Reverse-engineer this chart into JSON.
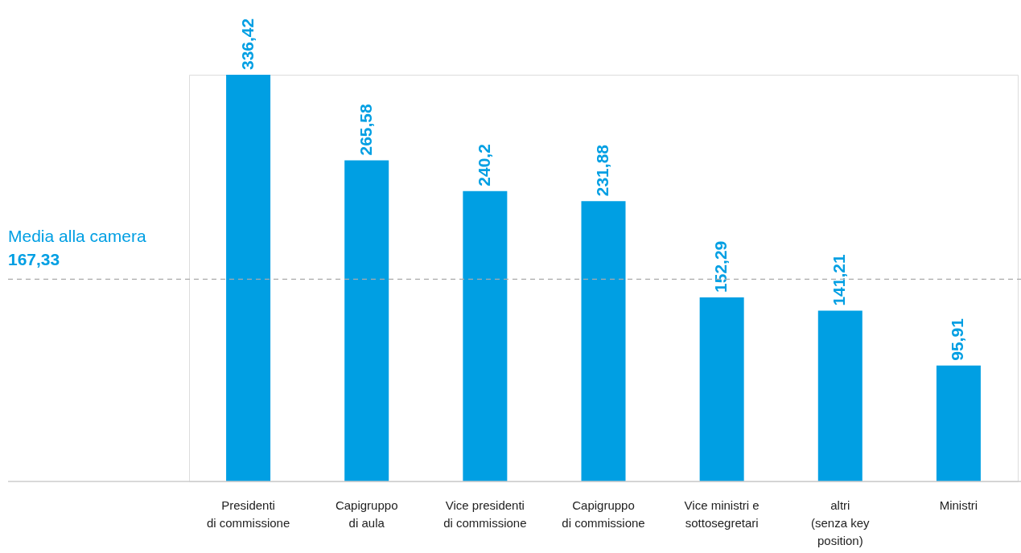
{
  "chart_data": {
    "type": "bar",
    "categories": [
      "Presidenti\ndi commissione",
      "Capigruppo\ndi aula",
      "Vice presidenti\ndi commissione",
      "Capigruppo\ndi commissione",
      "Vice ministri e\nsottosegretari",
      "altri\n(senza key\nposition)",
      "Ministri"
    ],
    "values": [
      336.42,
      265.58,
      240.2,
      231.88,
      152.29,
      141.21,
      95.91
    ],
    "value_labels": [
      "336,42",
      "265,58",
      "240,2",
      "231,88",
      "152,29",
      "141,21",
      "95,91"
    ],
    "color": "#009fe3",
    "ref_lines": [
      {
        "axis": "y",
        "value": 167.33,
        "label": "Media alla camera",
        "color": "#aaaaaa",
        "line_style": "dashed"
      }
    ],
    "annotations": [
      {
        "text": "167,33",
        "y": 167.33
      }
    ]
  }
}
